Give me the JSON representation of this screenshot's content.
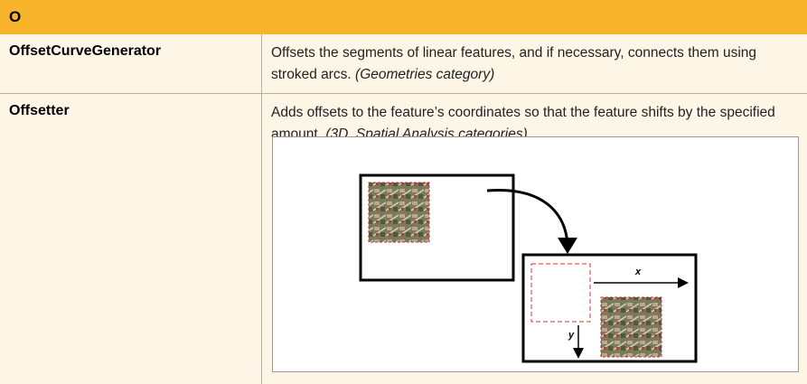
{
  "header": {
    "title": "O"
  },
  "table": {
    "rows": [
      {
        "name": "OffsetCurveGenerator",
        "description": "Offsets the segments of linear features, and if necessary, connects them using stroked arcs.",
        "category": "(Geometries category)"
      },
      {
        "name": "Offsetter",
        "description": "Adds offsets to the feature’s coordinates so that the feature shifts by the specified amount.",
        "category": "(3D, Spatial Analysis categories)"
      }
    ]
  },
  "figure": {
    "x_label": "x",
    "y_label": "y"
  }
}
